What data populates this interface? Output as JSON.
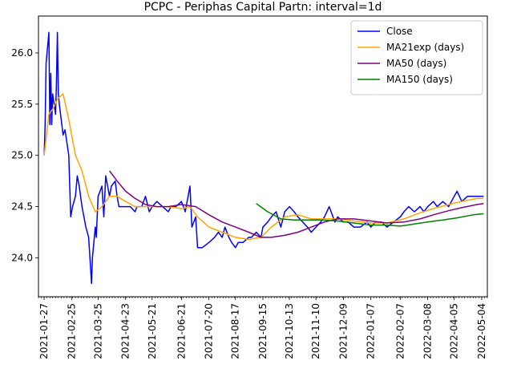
{
  "chart_data": {
    "type": "line",
    "title": "PCPC - Periphas Capital Partn: interval=1d",
    "xlabel": "",
    "ylabel": "",
    "xlim": [
      "2021-01-21",
      "2022-05-10"
    ],
    "ylim": [
      23.62,
      26.36
    ],
    "grid": false,
    "legend_position": "top-right",
    "x_ticks": [
      "2021-01-27",
      "2021-02-25",
      "2021-03-25",
      "2021-04-23",
      "2021-05-21",
      "2021-06-21",
      "2021-07-20",
      "2021-08-17",
      "2021-09-15",
      "2021-10-13",
      "2021-11-10",
      "2021-12-09",
      "2022-01-07",
      "2022-02-07",
      "2022-03-08",
      "2022-04-05",
      "2022-05-04"
    ],
    "y_ticks": [
      "24.0",
      "24.5",
      "25.0",
      "25.5",
      "26.0"
    ],
    "series": [
      {
        "name": "Close",
        "color": "#0000ff",
        "points": [
          [
            "2021-01-27",
            25.0
          ],
          [
            "2021-01-28",
            25.3
          ],
          [
            "2021-01-29",
            25.9
          ],
          [
            "2021-02-01",
            26.2
          ],
          [
            "2021-02-02",
            25.3
          ],
          [
            "2021-02-03",
            25.8
          ],
          [
            "2021-02-04",
            25.3
          ],
          [
            "2021-02-05",
            25.6
          ],
          [
            "2021-02-08",
            25.4
          ],
          [
            "2021-02-09",
            25.7
          ],
          [
            "2021-02-10",
            26.2
          ],
          [
            "2021-02-11",
            25.6
          ],
          [
            "2021-02-12",
            25.5
          ],
          [
            "2021-02-16",
            25.2
          ],
          [
            "2021-02-18",
            25.25
          ],
          [
            "2021-02-22",
            25.0
          ],
          [
            "2021-02-23",
            24.7
          ],
          [
            "2021-02-24",
            24.4
          ],
          [
            "2021-02-26",
            24.5
          ],
          [
            "2021-03-01",
            24.6
          ],
          [
            "2021-03-03",
            24.8
          ],
          [
            "2021-03-05",
            24.7
          ],
          [
            "2021-03-08",
            24.5
          ],
          [
            "2021-03-10",
            24.4
          ],
          [
            "2021-03-12",
            24.3
          ],
          [
            "2021-03-15",
            24.2
          ],
          [
            "2021-03-17",
            23.9
          ],
          [
            "2021-03-18",
            23.75
          ],
          [
            "2021-03-19",
            24.0
          ],
          [
            "2021-03-22",
            24.3
          ],
          [
            "2021-03-23",
            24.2
          ],
          [
            "2021-03-25",
            24.6
          ],
          [
            "2021-03-29",
            24.7
          ],
          [
            "2021-03-31",
            24.4
          ],
          [
            "2021-04-02",
            24.8
          ],
          [
            "2021-04-06",
            24.6
          ],
          [
            "2021-04-08",
            24.7
          ],
          [
            "2021-04-12",
            24.75
          ],
          [
            "2021-04-14",
            24.6
          ],
          [
            "2021-04-16",
            24.5
          ],
          [
            "2021-04-20",
            24.5
          ],
          [
            "2021-04-23",
            24.5
          ],
          [
            "2021-04-28",
            24.5
          ],
          [
            "2021-05-03",
            24.45
          ],
          [
            "2021-05-05",
            24.5
          ],
          [
            "2021-05-10",
            24.5
          ],
          [
            "2021-05-14",
            24.6
          ],
          [
            "2021-05-18",
            24.45
          ],
          [
            "2021-05-21",
            24.5
          ],
          [
            "2021-05-26",
            24.55
          ],
          [
            "2021-06-01",
            24.5
          ],
          [
            "2021-06-07",
            24.45
          ],
          [
            "2021-06-10",
            24.5
          ],
          [
            "2021-06-15",
            24.5
          ],
          [
            "2021-06-21",
            24.55
          ],
          [
            "2021-06-25",
            24.45
          ],
          [
            "2021-06-30",
            24.7
          ],
          [
            "2021-07-02",
            24.3
          ],
          [
            "2021-07-06",
            24.4
          ],
          [
            "2021-07-08",
            24.1
          ],
          [
            "2021-07-13",
            24.1
          ],
          [
            "2021-07-20",
            24.15
          ],
          [
            "2021-07-26",
            24.2
          ],
          [
            "2021-07-30",
            24.25
          ],
          [
            "2021-08-03",
            24.2
          ],
          [
            "2021-08-06",
            24.3
          ],
          [
            "2021-08-10",
            24.2
          ],
          [
            "2021-08-13",
            24.15
          ],
          [
            "2021-08-17",
            24.1
          ],
          [
            "2021-08-20",
            24.15
          ],
          [
            "2021-08-25",
            24.15
          ],
          [
            "2021-08-31",
            24.2
          ],
          [
            "2021-09-03",
            24.2
          ],
          [
            "2021-09-08",
            24.25
          ],
          [
            "2021-09-13",
            24.2
          ],
          [
            "2021-09-15",
            24.3
          ],
          [
            "2021-09-20",
            24.35
          ],
          [
            "2021-09-24",
            24.4
          ],
          [
            "2021-09-29",
            24.45
          ],
          [
            "2021-10-04",
            24.3
          ],
          [
            "2021-10-08",
            24.45
          ],
          [
            "2021-10-13",
            24.5
          ],
          [
            "2021-10-18",
            24.45
          ],
          [
            "2021-10-22",
            24.4
          ],
          [
            "2021-10-27",
            24.35
          ],
          [
            "2021-11-01",
            24.3
          ],
          [
            "2021-11-05",
            24.25
          ],
          [
            "2021-11-10",
            24.3
          ],
          [
            "2021-11-15",
            24.35
          ],
          [
            "2021-11-19",
            24.4
          ],
          [
            "2021-11-24",
            24.5
          ],
          [
            "2021-11-30",
            24.35
          ],
          [
            "2021-12-03",
            24.4
          ],
          [
            "2021-12-09",
            24.35
          ],
          [
            "2021-12-14",
            24.35
          ],
          [
            "2021-12-20",
            24.3
          ],
          [
            "2021-12-27",
            24.3
          ],
          [
            "2022-01-03",
            24.35
          ],
          [
            "2022-01-07",
            24.3
          ],
          [
            "2022-01-12",
            24.35
          ],
          [
            "2022-01-18",
            24.35
          ],
          [
            "2022-01-24",
            24.3
          ],
          [
            "2022-01-31",
            24.35
          ],
          [
            "2022-02-07",
            24.4
          ],
          [
            "2022-02-11",
            24.45
          ],
          [
            "2022-02-16",
            24.5
          ],
          [
            "2022-02-22",
            24.45
          ],
          [
            "2022-02-28",
            24.5
          ],
          [
            "2022-03-04",
            24.45
          ],
          [
            "2022-03-08",
            24.5
          ],
          [
            "2022-03-14",
            24.55
          ],
          [
            "2022-03-18",
            24.5
          ],
          [
            "2022-03-24",
            24.55
          ],
          [
            "2022-03-30",
            24.5
          ],
          [
            "2022-04-05",
            24.6
          ],
          [
            "2022-04-08",
            24.65
          ],
          [
            "2022-04-13",
            24.55
          ],
          [
            "2022-04-19",
            24.6
          ],
          [
            "2022-04-25",
            24.6
          ],
          [
            "2022-04-29",
            24.6
          ],
          [
            "2022-05-04",
            24.6
          ],
          [
            "2022-05-06",
            24.6
          ]
        ]
      },
      {
        "name": "MA21exp (days)",
        "color": "#ffa500",
        "points": [
          [
            "2021-01-27",
            25.0
          ],
          [
            "2021-02-01",
            25.4
          ],
          [
            "2021-02-05",
            25.45
          ],
          [
            "2021-02-10",
            25.55
          ],
          [
            "2021-02-16",
            25.6
          ],
          [
            "2021-02-22",
            25.35
          ],
          [
            "2021-03-01",
            25.0
          ],
          [
            "2021-03-08",
            24.85
          ],
          [
            "2021-03-15",
            24.6
          ],
          [
            "2021-03-22",
            24.45
          ],
          [
            "2021-03-29",
            24.5
          ],
          [
            "2021-04-06",
            24.6
          ],
          [
            "2021-04-14",
            24.6
          ],
          [
            "2021-04-23",
            24.55
          ],
          [
            "2021-05-03",
            24.5
          ],
          [
            "2021-05-14",
            24.5
          ],
          [
            "2021-05-26",
            24.5
          ],
          [
            "2021-06-07",
            24.5
          ],
          [
            "2021-06-21",
            24.48
          ],
          [
            "2021-06-30",
            24.5
          ],
          [
            "2021-07-08",
            24.4
          ],
          [
            "2021-07-20",
            24.3
          ],
          [
            "2021-08-03",
            24.25
          ],
          [
            "2021-08-17",
            24.2
          ],
          [
            "2021-08-31",
            24.18
          ],
          [
            "2021-09-13",
            24.2
          ],
          [
            "2021-09-24",
            24.3
          ],
          [
            "2021-10-08",
            24.4
          ],
          [
            "2021-10-22",
            24.42
          ],
          [
            "2021-11-05",
            24.38
          ],
          [
            "2021-11-19",
            24.38
          ],
          [
            "2021-12-03",
            24.38
          ],
          [
            "2021-12-20",
            24.36
          ],
          [
            "2022-01-07",
            24.34
          ],
          [
            "2022-01-24",
            24.34
          ],
          [
            "2022-02-11",
            24.38
          ],
          [
            "2022-02-28",
            24.44
          ],
          [
            "2022-03-14",
            24.48
          ],
          [
            "2022-03-30",
            24.52
          ],
          [
            "2022-04-13",
            24.55
          ],
          [
            "2022-04-29",
            24.58
          ],
          [
            "2022-05-06",
            24.58
          ]
        ]
      },
      {
        "name": "MA50 (days)",
        "color": "#800080",
        "points": [
          [
            "2021-04-06",
            24.85
          ],
          [
            "2021-04-14",
            24.75
          ],
          [
            "2021-04-23",
            24.65
          ],
          [
            "2021-05-03",
            24.58
          ],
          [
            "2021-05-14",
            24.52
          ],
          [
            "2021-05-26",
            24.5
          ],
          [
            "2021-06-07",
            24.5
          ],
          [
            "2021-06-21",
            24.52
          ],
          [
            "2021-07-06",
            24.5
          ],
          [
            "2021-07-20",
            24.42
          ],
          [
            "2021-08-03",
            24.35
          ],
          [
            "2021-08-17",
            24.3
          ],
          [
            "2021-08-31",
            24.25
          ],
          [
            "2021-09-13",
            24.2
          ],
          [
            "2021-09-24",
            24.2
          ],
          [
            "2021-10-08",
            24.22
          ],
          [
            "2021-10-22",
            24.25
          ],
          [
            "2021-11-05",
            24.3
          ],
          [
            "2021-11-19",
            24.35
          ],
          [
            "2021-12-03",
            24.38
          ],
          [
            "2021-12-20",
            24.38
          ],
          [
            "2022-01-07",
            24.36
          ],
          [
            "2022-01-24",
            24.34
          ],
          [
            "2022-02-11",
            24.35
          ],
          [
            "2022-02-28",
            24.38
          ],
          [
            "2022-03-14",
            24.42
          ],
          [
            "2022-03-30",
            24.46
          ],
          [
            "2022-04-13",
            24.49
          ],
          [
            "2022-04-29",
            24.52
          ],
          [
            "2022-05-06",
            24.53
          ]
        ]
      },
      {
        "name": "MA150 (days)",
        "color": "#008000",
        "points": [
          [
            "2021-09-08",
            24.53
          ],
          [
            "2021-09-20",
            24.45
          ],
          [
            "2021-10-04",
            24.38
          ],
          [
            "2021-10-18",
            24.37
          ],
          [
            "2021-11-01",
            24.37
          ],
          [
            "2021-11-15",
            24.37
          ],
          [
            "2021-12-03",
            24.36
          ],
          [
            "2021-12-20",
            24.34
          ],
          [
            "2022-01-07",
            24.32
          ],
          [
            "2022-01-24",
            24.32
          ],
          [
            "2022-02-07",
            24.31
          ],
          [
            "2022-02-22",
            24.33
          ],
          [
            "2022-03-08",
            24.35
          ],
          [
            "2022-03-24",
            24.37
          ],
          [
            "2022-04-08",
            24.39
          ],
          [
            "2022-04-25",
            24.42
          ],
          [
            "2022-05-06",
            24.43
          ]
        ]
      }
    ]
  }
}
